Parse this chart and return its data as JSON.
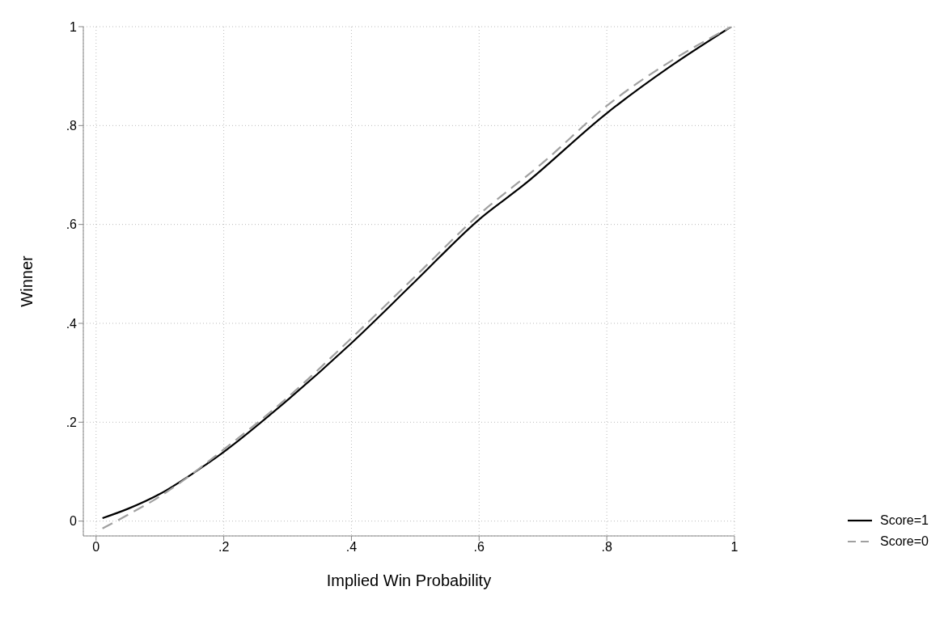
{
  "chart_data": {
    "type": "line",
    "xlabel": "Implied Win Probability",
    "ylabel": "Winner",
    "xlim": [
      -0.02,
      1
    ],
    "ylim": [
      -0.03,
      1
    ],
    "xticks": [
      0,
      {
        "value": 0.2,
        "label": ".2"
      },
      {
        "value": 0.4,
        "label": ".4"
      },
      {
        "value": 0.6,
        "label": ".6"
      },
      {
        "value": 0.8,
        "label": ".8"
      },
      1
    ],
    "yticks": [
      0,
      {
        "value": 0.2,
        "label": ".2"
      },
      {
        "value": 0.4,
        "label": ".4"
      },
      {
        "value": 0.6,
        "label": ".6"
      },
      {
        "value": 0.8,
        "label": ".8"
      },
      1
    ],
    "grid": true,
    "legend": "bottom right",
    "marker": "none",
    "series": [
      {
        "name": "Score=1",
        "color": "#000000",
        "line_style": "solid",
        "x": [
          0.01,
          0.05,
          0.1,
          0.15,
          0.2,
          0.3,
          0.4,
          0.5,
          0.6,
          0.67,
          0.8,
          0.9,
          0.995
        ],
        "values": [
          0.006,
          0.025,
          0.055,
          0.095,
          0.14,
          0.245,
          0.36,
          0.485,
          0.61,
          0.68,
          0.825,
          0.92,
          1.0
        ]
      },
      {
        "name": "Score=0",
        "color": "#a0a0a0",
        "line_style": "dashed",
        "x": [
          0.01,
          0.05,
          0.1,
          0.15,
          0.2,
          0.3,
          0.4,
          0.5,
          0.6,
          0.7,
          0.8,
          0.9,
          0.995
        ],
        "values": [
          -0.015,
          0.013,
          0.05,
          0.095,
          0.145,
          0.25,
          0.37,
          0.495,
          0.62,
          0.725,
          0.84,
          0.93,
          1.0
        ]
      }
    ]
  }
}
